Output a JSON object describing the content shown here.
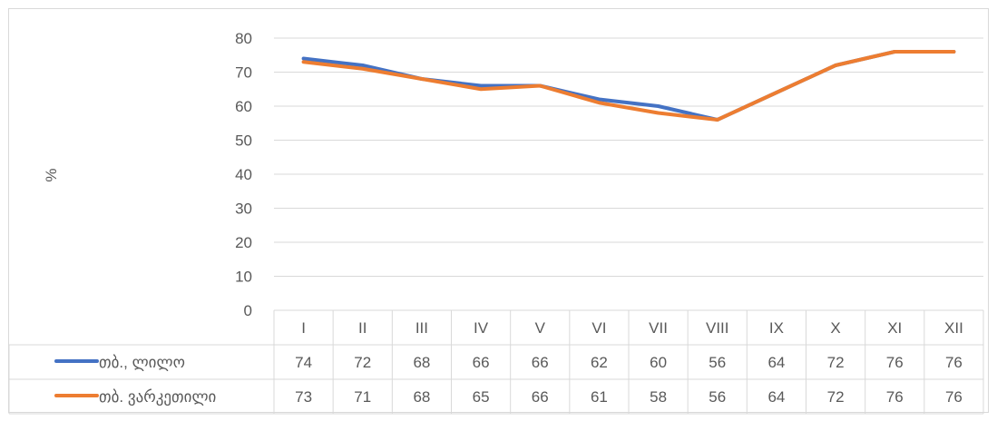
{
  "chart_data": {
    "type": "line",
    "title": "",
    "xlabel": "",
    "ylabel": "%",
    "ylim": [
      0,
      80
    ],
    "yticks": [
      0,
      10,
      20,
      30,
      40,
      50,
      60,
      70,
      80
    ],
    "grid": true,
    "legend": "data-table-left",
    "categories": [
      "I",
      "II",
      "III",
      "IV",
      "V",
      "VI",
      "VII",
      "VIII",
      "IX",
      "X",
      "XI",
      "XII"
    ],
    "series": [
      {
        "name": "თბ., ლილო",
        "color": "#4472C4",
        "values": [
          74,
          72,
          68,
          66,
          66,
          62,
          60,
          56,
          64,
          72,
          76,
          76
        ]
      },
      {
        "name": "თბ. ვარკეთილი",
        "color": "#ED7D31",
        "values": [
          73,
          71,
          68,
          65,
          66,
          61,
          58,
          56,
          64,
          72,
          76,
          76
        ]
      }
    ]
  }
}
